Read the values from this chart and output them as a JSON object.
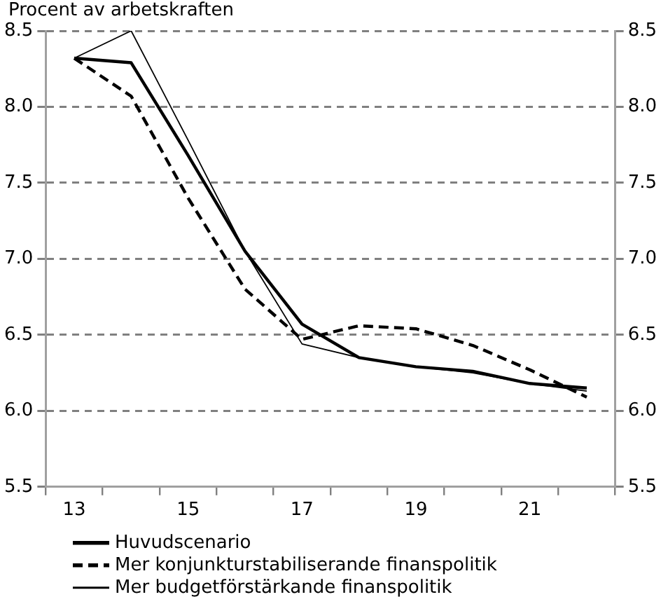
{
  "chart_data": {
    "type": "line",
    "title": "Procent av arbetskraften",
    "categories": [
      "13",
      null,
      "15",
      null,
      "17",
      null,
      "19",
      null,
      "21",
      null
    ],
    "series": [
      {
        "name": "Huvudscenario",
        "color": "#000000",
        "line_style": "solid",
        "values": [
          8.32,
          8.29,
          7.68,
          7.05,
          6.57,
          6.35,
          6.29,
          6.26,
          6.18,
          6.15
        ]
      },
      {
        "name": "Mer konjunkturstabiliserande finanspolitik",
        "color": "#000000",
        "line_style": "dashed",
        "values": [
          8.32,
          8.07,
          7.4,
          6.8,
          6.47,
          6.56,
          6.54,
          6.43,
          6.27,
          6.09
        ]
      },
      {
        "name": "Mer budgetförstärkande finanspolitik",
        "color": "#000000",
        "line_style": "solid",
        "values": [
          8.32,
          8.5,
          7.78,
          7.05,
          6.44,
          6.35,
          6.29,
          6.25,
          6.18,
          6.13
        ]
      }
    ],
    "ylim": [
      5.5,
      8.5
    ],
    "yticks": [
      {
        "value": 5.5,
        "label": "5.5"
      },
      {
        "value": 6,
        "label": "6.0"
      },
      {
        "value": 6.5,
        "label": "6.5"
      },
      {
        "value": 7,
        "label": "7.0"
      },
      {
        "value": 7.5,
        "label": "7.5"
      },
      {
        "value": 8,
        "label": "8.0"
      },
      {
        "value": 8.5,
        "label": "8.5"
      }
    ],
    "y2lim": [
      5.5,
      8.5
    ],
    "y2ticks": [
      {
        "value": 5.5,
        "label": "5.5"
      },
      {
        "value": 6,
        "label": "6.0"
      },
      {
        "value": 6.5,
        "label": "6.5"
      },
      {
        "value": 7,
        "label": "7.0"
      },
      {
        "value": 7.5,
        "label": "7.5"
      },
      {
        "value": 8,
        "label": "8.0"
      },
      {
        "value": 8.5,
        "label": "8.5"
      }
    ],
    "grid": "y",
    "legend": "bottom",
    "marker": "none"
  }
}
